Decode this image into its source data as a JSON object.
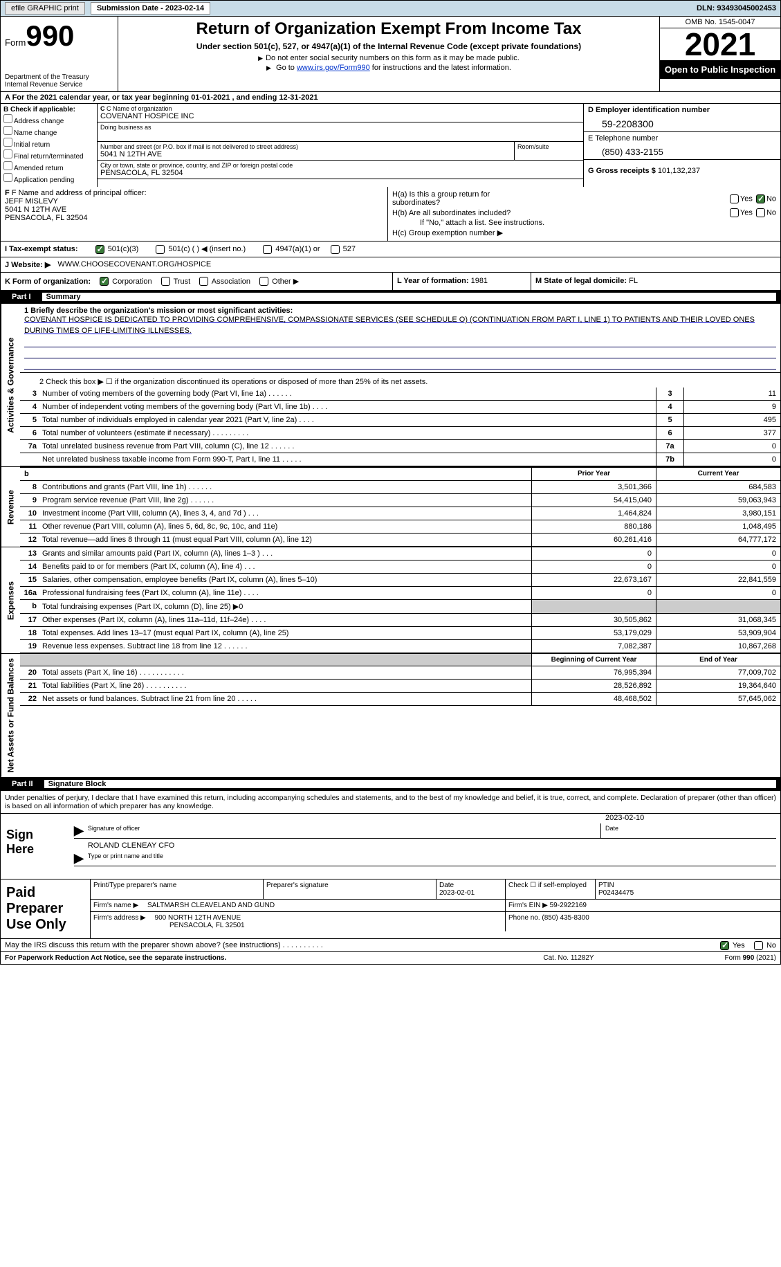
{
  "topbar": {
    "efile_label": "efile GRAPHIC print",
    "sub_date_label": "Submission Date - 2023-02-14",
    "dln": "DLN: 93493045002453"
  },
  "header": {
    "form_text": "Form",
    "form_num": "990",
    "dept": "Department of the Treasury",
    "irs": "Internal Revenue Service",
    "title": "Return of Organization Exempt From Income Tax",
    "sub1": "Under section 501(c), 527, or 4947(a)(1) of the Internal Revenue Code (except private foundations)",
    "sub2": "Do not enter social security numbers on this form as it may be made public.",
    "sub3_prefix": "Go to ",
    "sub3_link": "www.irs.gov/Form990",
    "sub3_suffix": " for instructions and the latest information.",
    "omb": "OMB No. 1545-0047",
    "year": "2021",
    "open": "Open to Public Inspection"
  },
  "line_a": "A For the 2021 calendar year, or tax year beginning 01-01-2021   , and ending 12-31-2021",
  "col_b": {
    "header": "B Check if applicable:",
    "items": [
      "Address change",
      "Name change",
      "Initial return",
      "Final return/terminated",
      "Amended return",
      "Application pending"
    ]
  },
  "col_c": {
    "name_lbl": "C Name of organization",
    "name": "COVENANT HOSPICE INC",
    "dba_lbl": "Doing business as",
    "dba": "",
    "street_lbl": "Number and street (or P.O. box if mail is not delivered to street address)",
    "street": "5041 N 12TH AVE",
    "room_lbl": "Room/suite",
    "city_lbl": "City or town, state or province, country, and ZIP or foreign postal code",
    "city": "PENSACOLA, FL  32504"
  },
  "col_d": {
    "ein_lbl": "D Employer identification number",
    "ein": "59-2208300",
    "tel_lbl": "E Telephone number",
    "tel": "(850) 433-2155",
    "gross_lbl": "G Gross receipts $",
    "gross": "101,132,237"
  },
  "col_f": {
    "lbl": "F Name and address of principal officer:",
    "name": "JEFF MISLEVY",
    "addr1": "5041 N 12TH AVE",
    "addr2": "PENSACOLA, FL  32504"
  },
  "col_h": {
    "ha": "H(a)  Is this a group return for subordinates?",
    "hb": "H(b)  Are all subordinates included?",
    "hb_note": "If \"No,\" attach a list. See instructions.",
    "hc": "H(c)  Group exemption number ▶",
    "yes": "Yes",
    "no": "No"
  },
  "row_i": {
    "lbl": "I   Tax-exempt status:",
    "opt1": "501(c)(3)",
    "opt2": "501(c) (  ) ◀ (insert no.)",
    "opt3": "4947(a)(1) or",
    "opt4": "527"
  },
  "row_j": {
    "lbl": "J   Website: ▶",
    "val": "WWW.CHOOSECOVENANT.ORG/HOSPICE"
  },
  "row_k": {
    "lbl": "K Form of organization:",
    "corp": "Corporation",
    "trust": "Trust",
    "assoc": "Association",
    "other": "Other ▶",
    "l_lbl": "L Year of formation:",
    "l_val": "1981",
    "m_lbl": "M State of legal domicile:",
    "m_val": "FL"
  },
  "parts": {
    "p1_num": "Part I",
    "p1_title": "Summary",
    "p2_num": "Part II",
    "p2_title": "Signature Block"
  },
  "vtabs": {
    "activities": "Activities & Governance",
    "revenue": "Revenue",
    "expenses": "Expenses",
    "netassets": "Net Assets or Fund Balances"
  },
  "mission": {
    "lbl": "1   Briefly describe the organization's mission or most significant activities:",
    "text": "COVENANT HOSPICE IS DEDICATED TO PROVIDING COMPREHENSIVE, COMPASSIONATE SERVICES (SEE SCHEDULE O) (CONTINUATION FROM PART I, LINE 1) TO PATIENTS AND THEIR LOVED ONES DURING TIMES OF LIFE-LIMITING ILLNESSES."
  },
  "line2": "2    Check this box ▶ ☐ if the organization discontinued its operations or disposed of more than 25% of its net assets.",
  "gov_rows": [
    {
      "n": "3",
      "desc": "Number of voting members of the governing body (Part VI, line 1a)   .    .    .    .    .    .",
      "box": "3",
      "val": "11"
    },
    {
      "n": "4",
      "desc": "Number of independent voting members of the governing body (Part VI, line 1b)   .    .    .    .",
      "box": "4",
      "val": "9"
    },
    {
      "n": "5",
      "desc": "Total number of individuals employed in calendar year 2021 (Part V, line 2a)   .    .    .    .",
      "box": "5",
      "val": "495"
    },
    {
      "n": "6",
      "desc": "Total number of volunteers (estimate if necessary)    .    .    .    .    .    .    .    .    .",
      "box": "6",
      "val": "377"
    },
    {
      "n": "7a",
      "desc": "Total unrelated business revenue from Part VIII, column (C), line 12   .    .    .    .    .    .",
      "box": "7a",
      "val": "0"
    },
    {
      "n": "",
      "desc": "Net unrelated business taxable income from Form 990-T, Part I, line 11   .    .    .    .    .",
      "box": "7b",
      "val": "0"
    }
  ],
  "rev_hdr": {
    "col1": "Prior Year",
    "col2": "Current Year"
  },
  "rev_rows": [
    {
      "n": "8",
      "desc": "Contributions and grants (Part VIII, line 1h)   .    .    .    .    .    .",
      "c1": "3,501,366",
      "c2": "684,583"
    },
    {
      "n": "9",
      "desc": "Program service revenue (Part VIII, line 2g)   .    .    .    .    .    .",
      "c1": "54,415,040",
      "c2": "59,063,943"
    },
    {
      "n": "10",
      "desc": "Investment income (Part VIII, column (A), lines 3, 4, and 7d )   .    .    .",
      "c1": "1,464,824",
      "c2": "3,980,151"
    },
    {
      "n": "11",
      "desc": "Other revenue (Part VIII, column (A), lines 5, 6d, 8c, 9c, 10c, and 11e)",
      "c1": "880,186",
      "c2": "1,048,495"
    },
    {
      "n": "12",
      "desc": "Total revenue—add lines 8 through 11 (must equal Part VIII, column (A), line 12)",
      "c1": "60,261,416",
      "c2": "64,777,172"
    }
  ],
  "exp_rows": [
    {
      "n": "13",
      "desc": "Grants and similar amounts paid (Part IX, column (A), lines 1–3 )   .    .    .",
      "c1": "0",
      "c2": "0"
    },
    {
      "n": "14",
      "desc": "Benefits paid to or for members (Part IX, column (A), line 4)   .    .    .",
      "c1": "0",
      "c2": "0"
    },
    {
      "n": "15",
      "desc": "Salaries, other compensation, employee benefits (Part IX, column (A), lines 5–10)",
      "c1": "22,673,167",
      "c2": "22,841,559"
    },
    {
      "n": "16a",
      "desc": "Professional fundraising fees (Part IX, column (A), line 11e)   .    .    .    .",
      "c1": "0",
      "c2": "0"
    },
    {
      "n": "b",
      "desc": "Total fundraising expenses (Part IX, column (D), line 25) ▶0",
      "c1": "",
      "c2": "",
      "shaded": true
    },
    {
      "n": "17",
      "desc": "Other expenses (Part IX, column (A), lines 11a–11d, 11f–24e)   .    .    .    .",
      "c1": "30,505,862",
      "c2": "31,068,345"
    },
    {
      "n": "18",
      "desc": "Total expenses. Add lines 13–17 (must equal Part IX, column (A), line 25)",
      "c1": "53,179,029",
      "c2": "53,909,904"
    },
    {
      "n": "19",
      "desc": "Revenue less expenses. Subtract line 18 from line 12   .    .    .    .    .    .",
      "c1": "7,082,387",
      "c2": "10,867,268"
    }
  ],
  "net_hdr": {
    "col1": "Beginning of Current Year",
    "col2": "End of Year"
  },
  "net_rows": [
    {
      "n": "20",
      "desc": "Total assets (Part X, line 16)   .    .    .    .    .    .    .    .    .    .    .",
      "c1": "76,995,394",
      "c2": "77,009,702"
    },
    {
      "n": "21",
      "desc": "Total liabilities (Part X, line 26)   .    .    .    .    .    .    .    .    .    .",
      "c1": "28,526,892",
      "c2": "19,364,640"
    },
    {
      "n": "22",
      "desc": "Net assets or fund balances. Subtract line 21 from line 20   .    .    .    .    .",
      "c1": "48,468,502",
      "c2": "57,645,062"
    }
  ],
  "penalty": "Under penalties of perjury, I declare that I have examined this return, including accompanying schedules and statements, and to the best of my knowledge and belief, it is true, correct, and complete. Declaration of preparer (other than officer) is based on all information of which preparer has any knowledge.",
  "sign": {
    "label": "Sign Here",
    "sig_caption": "Signature of officer",
    "date_caption": "Date",
    "date_val": "2023-02-10",
    "name": "ROLAND CLENEAY CFO",
    "name_caption": "Type or print name and title"
  },
  "prep": {
    "label": "Paid Preparer Use Only",
    "col1_lbl": "Print/Type preparer's name",
    "col2_lbl": "Preparer's signature",
    "col3_lbl": "Date",
    "col3_val": "2023-02-01",
    "col4_lbl": "Check ☐ if self-employed",
    "col5_lbl": "PTIN",
    "col5_val": "P02434475",
    "firm_lbl": "Firm's name    ▶",
    "firm_val": "SALTMARSH CLEAVELAND AND GUND",
    "ein_lbl": "Firm's EIN ▶",
    "ein_val": "59-2922169",
    "addr_lbl": "Firm's address ▶",
    "addr_val1": "900 NORTH 12TH AVENUE",
    "addr_val2": "PENSACOLA, FL  32501",
    "phone_lbl": "Phone no.",
    "phone_val": "(850) 435-8300"
  },
  "discuss": {
    "text": "May the IRS discuss this return with the preparer shown above? (see instructions)   .    .    .    .    .    .    .    .    .    .",
    "yes": "Yes",
    "no": "No"
  },
  "footer": {
    "left": "For Paperwork Reduction Act Notice, see the separate instructions.",
    "mid": "Cat. No. 11282Y",
    "right": "Form 990 (2021)"
  }
}
